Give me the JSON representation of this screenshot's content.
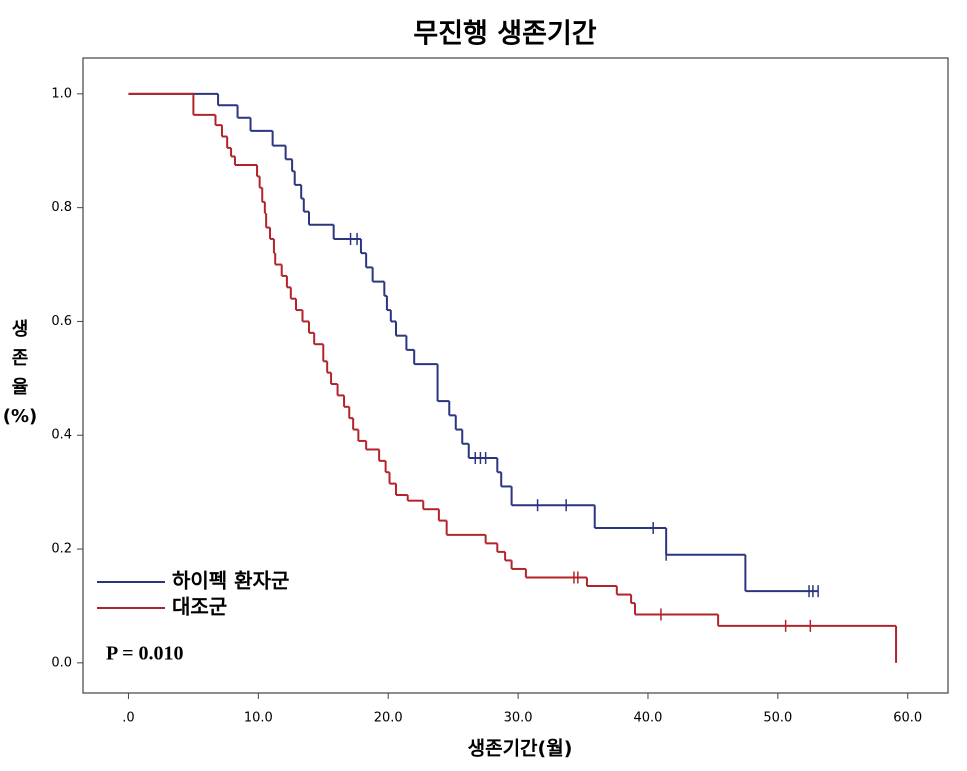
{
  "chart_data": {
    "type": "step",
    "title": "무진행 생존기간",
    "x_label": "생존기간(월)",
    "y_label": [
      "생",
      "존",
      "율",
      "(%)"
    ],
    "annotation": "P = 0.010",
    "xlim": [
      -3.5,
      63.1
    ],
    "ylim": [
      -0.053,
      1.063
    ],
    "xticks": [
      {
        "value": 0,
        "label": ".0"
      },
      {
        "value": 10,
        "label": "10.0"
      },
      {
        "value": 20,
        "label": "20.0"
      },
      {
        "value": 30,
        "label": "30.0"
      },
      {
        "value": 40,
        "label": "40.0"
      },
      {
        "value": 50,
        "label": "50.0"
      },
      {
        "value": 60,
        "label": "60.0"
      }
    ],
    "yticks": [
      {
        "value": 0,
        "label": "0.0"
      },
      0.2,
      0.4,
      0.6,
      0.8,
      {
        "value": 1,
        "label": "1.0"
      }
    ],
    "legend": "lower left",
    "series": [
      {
        "name": "하이펙 환자군",
        "color": "#2b3580",
        "x": [
          0,
          6.9,
          8.4,
          9.4,
          11.1,
          12.1,
          12.6,
          12.8,
          13.3,
          13.5,
          13.9,
          15.8,
          17.9,
          18.3,
          18.8,
          19.7,
          19.9,
          20.2,
          20.6,
          21.4,
          22.0,
          23.8,
          24.7,
          25.2,
          25.7,
          26.2,
          28.4,
          28.7,
          29.5,
          35.9,
          41.4,
          47.5
        ],
        "values": [
          1.0,
          0.98,
          0.958,
          0.935,
          0.909,
          0.885,
          0.864,
          0.84,
          0.816,
          0.793,
          0.77,
          0.745,
          0.72,
          0.695,
          0.67,
          0.645,
          0.62,
          0.6,
          0.575,
          0.55,
          0.525,
          0.46,
          0.435,
          0.41,
          0.385,
          0.36,
          0.335,
          0.31,
          0.277,
          0.237,
          0.19,
          0.126
        ],
        "censor_x": [
          17.1,
          17.6,
          26.7,
          27.1,
          27.5,
          31.5,
          33.7,
          40.4,
          41.4,
          52.4,
          52.7,
          53.1
        ],
        "censor_values": [
          0.745,
          0.745,
          0.36,
          0.36,
          0.36,
          0.277,
          0.277,
          0.237,
          0.19,
          0.126,
          0.126,
          0.126
        ]
      },
      {
        "name": "대조군",
        "color": "#b3242a",
        "x": [
          0,
          5.0,
          6.7,
          7.2,
          7.6,
          7.9,
          8.2,
          9.9,
          10.1,
          10.3,
          10.5,
          10.6,
          10.9,
          11.2,
          11.3,
          11.8,
          12.2,
          12.5,
          12.9,
          13.4,
          13.9,
          14.3,
          15.0,
          15.3,
          15.6,
          16.1,
          16.6,
          17.0,
          17.3,
          17.7,
          18.3,
          19.3,
          19.8,
          20.1,
          20.6,
          21.5,
          22.7,
          23.9,
          24.5,
          27.5,
          28.4,
          29.0,
          29.5,
          30.6,
          35.3,
          37.6,
          38.7,
          39.0,
          45.4,
          59.1
        ],
        "values": [
          1.0,
          0.963,
          0.945,
          0.925,
          0.905,
          0.89,
          0.875,
          0.855,
          0.835,
          0.81,
          0.79,
          0.765,
          0.745,
          0.72,
          0.7,
          0.68,
          0.66,
          0.64,
          0.62,
          0.6,
          0.58,
          0.56,
          0.53,
          0.51,
          0.49,
          0.47,
          0.45,
          0.43,
          0.41,
          0.39,
          0.375,
          0.355,
          0.335,
          0.315,
          0.295,
          0.285,
          0.27,
          0.25,
          0.225,
          0.21,
          0.195,
          0.18,
          0.165,
          0.15,
          0.135,
          0.12,
          0.105,
          0.085,
          0.065,
          0.0
        ],
        "censor_x": [
          34.3,
          34.6,
          41.0,
          50.6,
          52.5
        ],
        "censor_values": [
          0.15,
          0.15,
          0.085,
          0.065,
          0.065
        ]
      }
    ]
  }
}
